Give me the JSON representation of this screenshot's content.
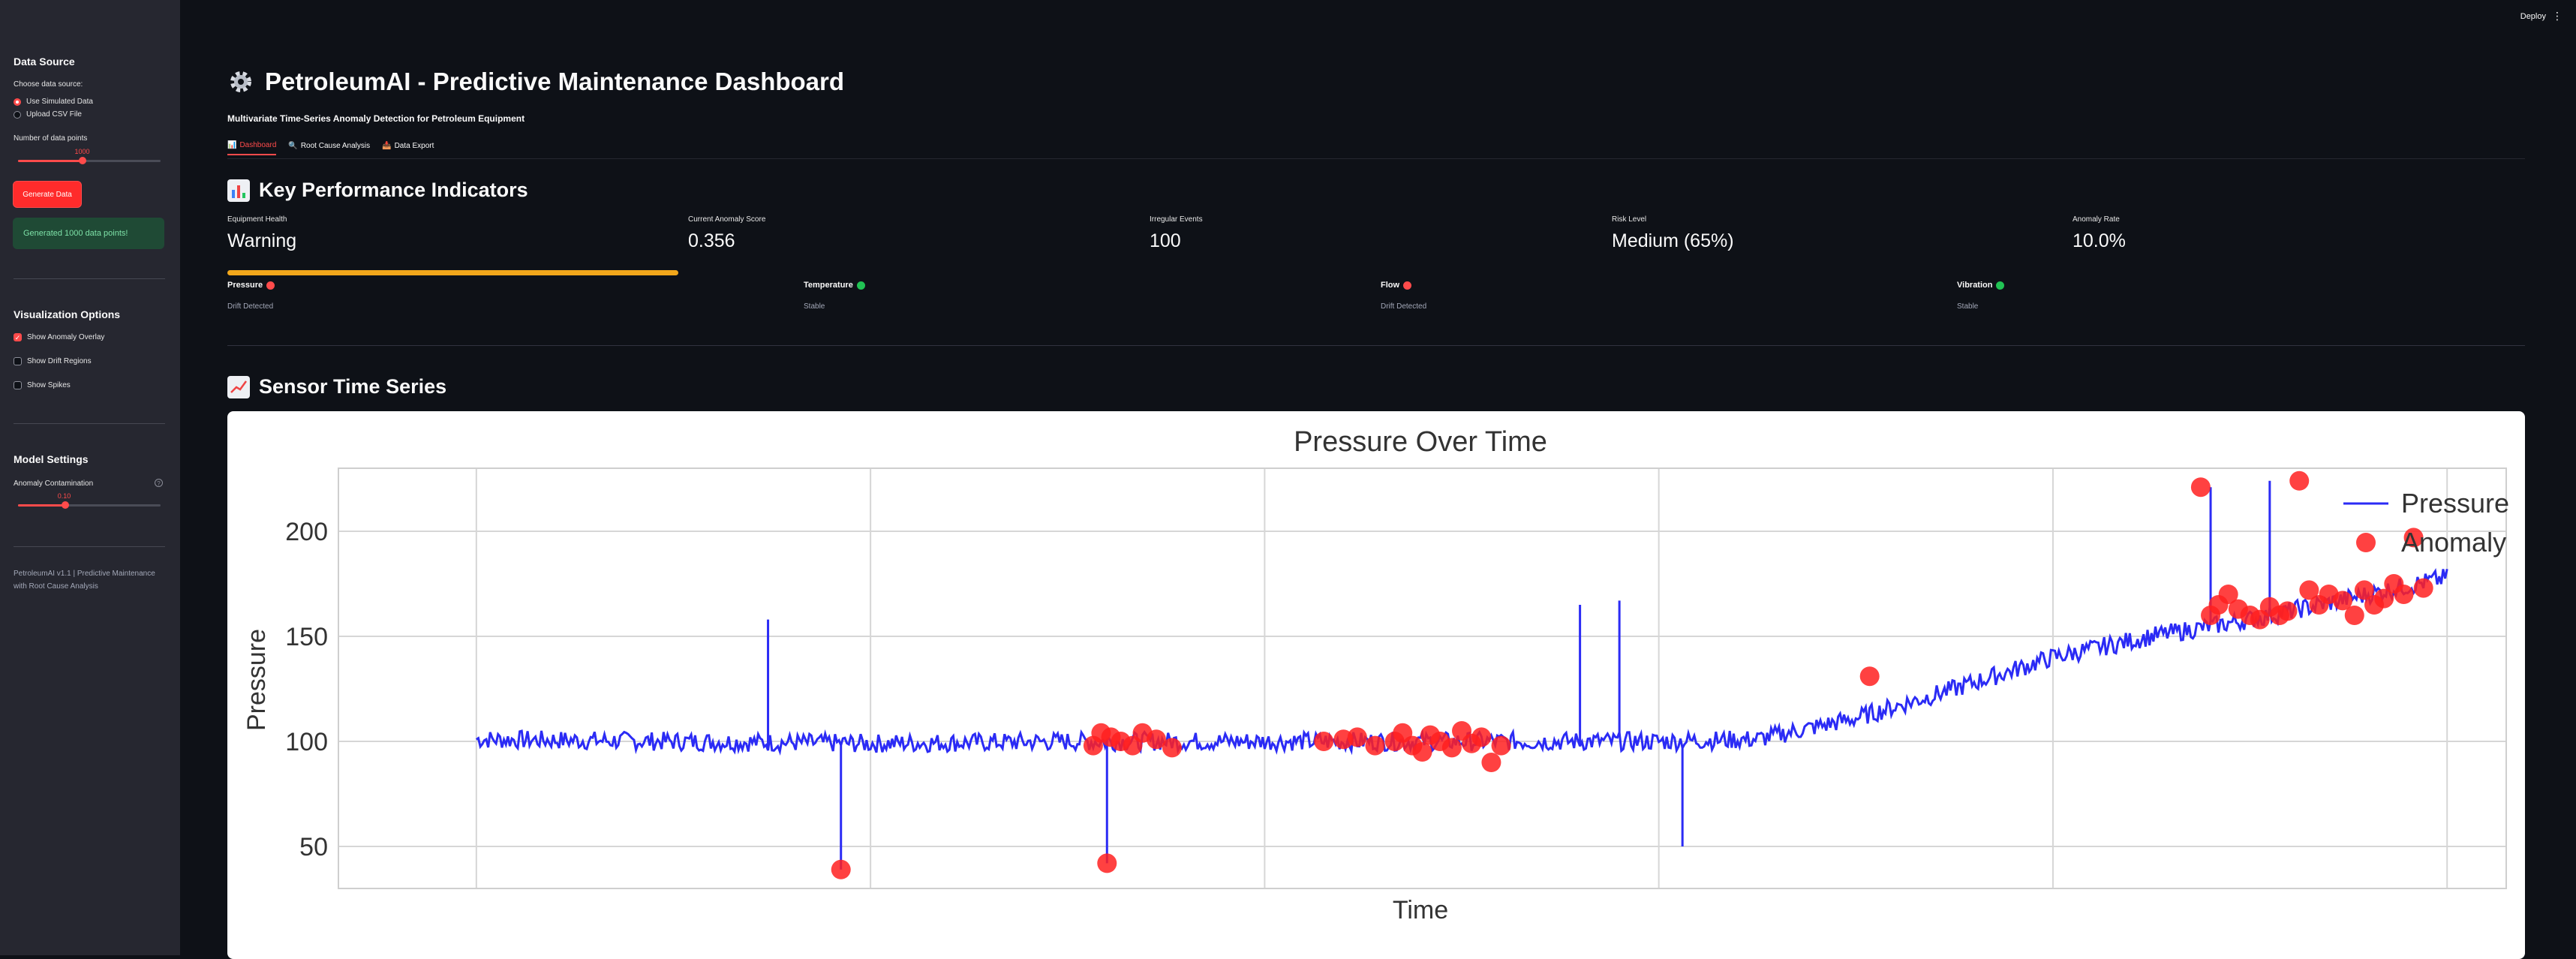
{
  "topbar": {
    "deploy_label": "Deploy",
    "menu_glyph": "⋮"
  },
  "sidebar": {
    "data_source_title": "Data Source",
    "choose_label": "Choose data source:",
    "options": [
      "Use Simulated Data",
      "Upload CSV File"
    ],
    "selected_option": "Use Simulated Data",
    "points_label": "Number of data points",
    "points_value": "1000",
    "points_fraction": 0.45,
    "generate_button": "Generate Data",
    "success_message": "Generated 1000 data points!",
    "viz_title": "Visualization Options",
    "viz_options": [
      {
        "label": "Show Anomaly Overlay",
        "checked": true
      },
      {
        "label": "Show Drift Regions",
        "checked": false
      },
      {
        "label": "Show Spikes",
        "checked": false
      }
    ],
    "model_title": "Model Settings",
    "contamination_label": "Anomaly Contamination",
    "contamination_value": "0.10",
    "contamination_fraction": 0.33,
    "help_glyph": "?",
    "footer": "PetroleumAI v1.1 | Predictive Maintenance with Root Cause Analysis"
  },
  "header": {
    "title": "PetroleumAI - Predictive Maintenance Dashboard",
    "subtitle": "Multivariate Time-Series Anomaly Detection for Petroleum Equipment",
    "title_icon": "gear-icon"
  },
  "tabs": [
    {
      "label": "Dashboard",
      "icon": "chart-icon",
      "active": true
    },
    {
      "label": "Root Cause Analysis",
      "icon": "magnifier-icon",
      "active": false
    },
    {
      "label": "Data Export",
      "icon": "export-icon",
      "active": false
    }
  ],
  "kpi_section": {
    "title": "Key Performance Indicators",
    "items": [
      {
        "label": "Equipment Health",
        "value": "Warning"
      },
      {
        "label": "Current Anomaly Score",
        "value": "0.356"
      },
      {
        "label": "Irregular Events",
        "value": "100"
      },
      {
        "label": "Risk Level",
        "value": "Medium (65%)"
      },
      {
        "label": "Anomaly Rate",
        "value": "10.0%"
      }
    ],
    "health_bar_color": "#f2a71b",
    "health_bar_fraction": 1.0
  },
  "sensors": [
    {
      "name": "Pressure",
      "status": "Drift Detected",
      "color": "#ff4b4b"
    },
    {
      "name": "Temperature",
      "status": "Stable",
      "color": "#21c354"
    },
    {
      "name": "Flow",
      "status": "Drift Detected",
      "color": "#ff4b4b"
    },
    {
      "name": "Vibration",
      "status": "Stable",
      "color": "#21c354"
    }
  ],
  "timeseries_section": {
    "title": "Sensor Time Series"
  },
  "chart_data": {
    "type": "line",
    "title": "Pressure Over Time",
    "xlabel": "Time",
    "ylabel": "Pressure",
    "yticks": [
      50,
      100,
      150,
      200
    ],
    "ylim": [
      30,
      230
    ],
    "xlim": [
      -70,
      1030
    ],
    "grid": true,
    "legend_position": "top-right",
    "series": [
      {
        "name": "Pressure",
        "color": "#2b2bf5",
        "type": "line",
        "x": [
          0,
          100,
          200,
          300,
          400,
          500,
          550,
          600,
          650,
          700,
          750,
          800,
          850,
          900,
          950,
          1000
        ],
        "values": [
          101,
          100,
          99,
          100,
          100,
          100,
          100,
          100,
          101,
          111,
          125,
          140,
          150,
          158,
          168,
          178
        ]
      },
      {
        "name": "Anomaly",
        "color": "#ff2020",
        "type": "scatter",
        "x": [
          185,
          313,
          317,
          322,
          327,
          333,
          338,
          345,
          353,
          430,
          440,
          447,
          456,
          466,
          470,
          475,
          480,
          484,
          489,
          495,
          500,
          505,
          510,
          515,
          520,
          707,
          875,
          880,
          884,
          889,
          894,
          900,
          905,
          910,
          915,
          919,
          925,
          930,
          935,
          940,
          947,
          953,
          958,
          963,
          968,
          973,
          978,
          983,
          988,
          320
        ],
        "y": [
          39,
          98,
          104,
          102,
          100,
          98,
          104,
          101,
          97,
          100,
          101,
          102,
          98,
          100,
          104,
          98,
          95,
          103,
          100,
          97,
          105,
          99,
          102,
          90,
          98,
          131,
          221,
          160,
          165,
          170,
          163,
          160,
          158,
          164,
          160,
          162,
          224,
          172,
          165,
          170,
          167,
          160,
          172,
          165,
          168,
          175,
          170,
          197,
          173,
          42
        ]
      }
    ],
    "spikes": [
      {
        "x": 185,
        "y": 39
      },
      {
        "x": 320,
        "y": 42
      },
      {
        "x": 148,
        "y": 158
      },
      {
        "x": 560,
        "y": 165
      },
      {
        "x": 580,
        "y": 167
      },
      {
        "x": 612,
        "y": 50
      },
      {
        "x": 880,
        "y": 221
      },
      {
        "x": 910,
        "y": 224
      }
    ]
  }
}
